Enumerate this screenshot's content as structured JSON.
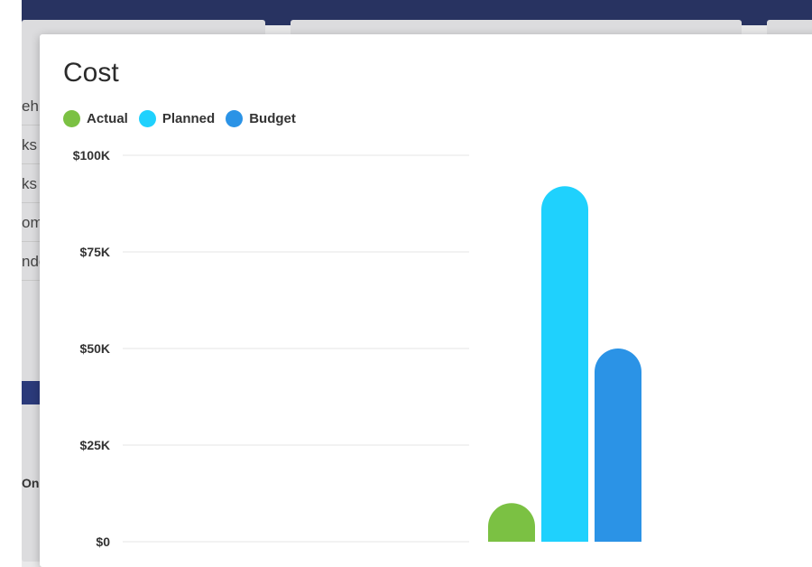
{
  "background": {
    "list_items": [
      "ehi",
      "ks",
      "ks",
      "om",
      "nde"
    ],
    "small_label": "On T"
  },
  "modal": {
    "title": "Cost"
  },
  "chart_data": {
    "type": "bar",
    "title": "Cost",
    "categories": [
      ""
    ],
    "series": [
      {
        "name": "Actual",
        "values": [
          10000
        ],
        "color": "#7bc143"
      },
      {
        "name": "Planned",
        "values": [
          92000
        ],
        "color": "#1fd1fd"
      },
      {
        "name": "Budget",
        "values": [
          50000
        ],
        "color": "#2b93e6"
      }
    ],
    "ylim": [
      0,
      100000
    ],
    "yticks": [
      0,
      25000,
      50000,
      75000,
      100000
    ],
    "ytick_labels": [
      "$0",
      "$25K",
      "$50K",
      "$75K",
      "$100K"
    ],
    "grid": true,
    "legend": "top-left"
  }
}
